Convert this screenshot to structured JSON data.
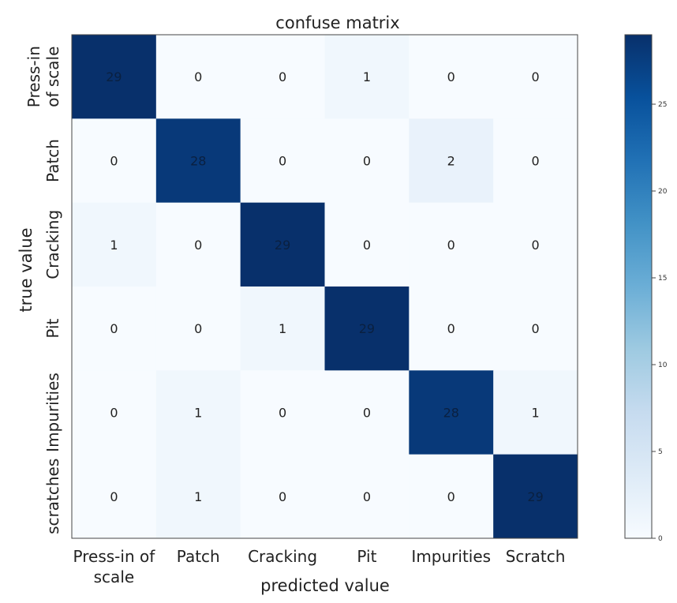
{
  "chart_data": {
    "type": "heatmap",
    "title": "confuse matrix",
    "xlabel": "predicted value",
    "ylabel": "true value",
    "x_categories": [
      [
        "Press-in of",
        "scale"
      ],
      [
        "Patch"
      ],
      [
        "Cracking"
      ],
      [
        "Pit"
      ],
      [
        "Impurities"
      ],
      [
        "Scratch"
      ]
    ],
    "y_categories": [
      [
        "Press-in",
        "of scale"
      ],
      [
        "Patch"
      ],
      [
        "Cracking"
      ],
      [
        "Pit"
      ],
      [
        "Impurities"
      ],
      [
        "scratches"
      ]
    ],
    "matrix": [
      [
        29,
        0,
        0,
        1,
        0,
        0
      ],
      [
        0,
        28,
        0,
        0,
        2,
        0
      ],
      [
        1,
        0,
        29,
        0,
        0,
        0
      ],
      [
        0,
        0,
        1,
        29,
        0,
        0
      ],
      [
        0,
        1,
        0,
        0,
        28,
        1
      ],
      [
        0,
        1,
        0,
        0,
        0,
        29
      ]
    ],
    "colormap": "Blues",
    "color_range": [
      0,
      29
    ],
    "colorbar_ticks": [
      0,
      5,
      10,
      15,
      20,
      25
    ]
  }
}
